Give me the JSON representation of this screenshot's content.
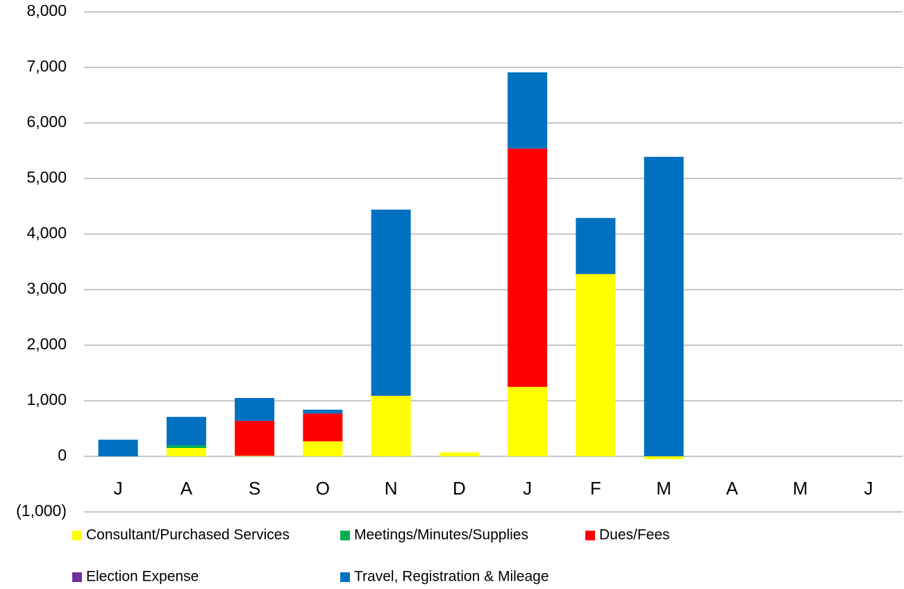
{
  "chart_data": {
    "type": "stacked_bar",
    "categories": [
      "J",
      "A",
      "S",
      "O",
      "N",
      "D",
      "J",
      "F",
      "M",
      "A",
      "M",
      "J"
    ],
    "series": [
      {
        "name": "Consultant/Purchased Services",
        "color": "#ffff00",
        "values": [
          0,
          150,
          10,
          270,
          1090,
          70,
          1250,
          3280,
          -50,
          null,
          null,
          null
        ]
      },
      {
        "name": "Meetings/Minutes/Supplies",
        "color": "#00b050",
        "values": [
          0,
          50,
          0,
          0,
          0,
          0,
          0,
          0,
          0,
          null,
          null,
          null
        ]
      },
      {
        "name": "Dues/Fees",
        "color": "#ff0000",
        "values": [
          0,
          0,
          630,
          500,
          0,
          0,
          4290,
          0,
          0,
          null,
          null,
          null
        ]
      },
      {
        "name": "Election Expense",
        "color": "#7030a0",
        "values": [
          0,
          0,
          0,
          0,
          0,
          0,
          0,
          0,
          0,
          null,
          null,
          null
        ]
      },
      {
        "name": "Travel, Registration & Mileage",
        "color": "#0070c0",
        "values": [
          300,
          510,
          410,
          70,
          3350,
          0,
          1370,
          1010,
          5390,
          null,
          null,
          null
        ]
      }
    ],
    "ylim": [
      -1000,
      8000
    ],
    "yticks": [
      {
        "value": -1000,
        "label": "(1,000)"
      },
      0,
      {
        "value": 1000,
        "label": "1,000"
      },
      {
        "value": 2000,
        "label": "2,000"
      },
      {
        "value": 3000,
        "label": "3,000"
      },
      {
        "value": 4000,
        "label": "4,000"
      },
      {
        "value": 5000,
        "label": "5,000"
      },
      {
        "value": 6000,
        "label": "6,000"
      },
      {
        "value": 7000,
        "label": "7,000"
      },
      {
        "value": 8000,
        "label": "8,000"
      }
    ],
    "grid": true
  }
}
